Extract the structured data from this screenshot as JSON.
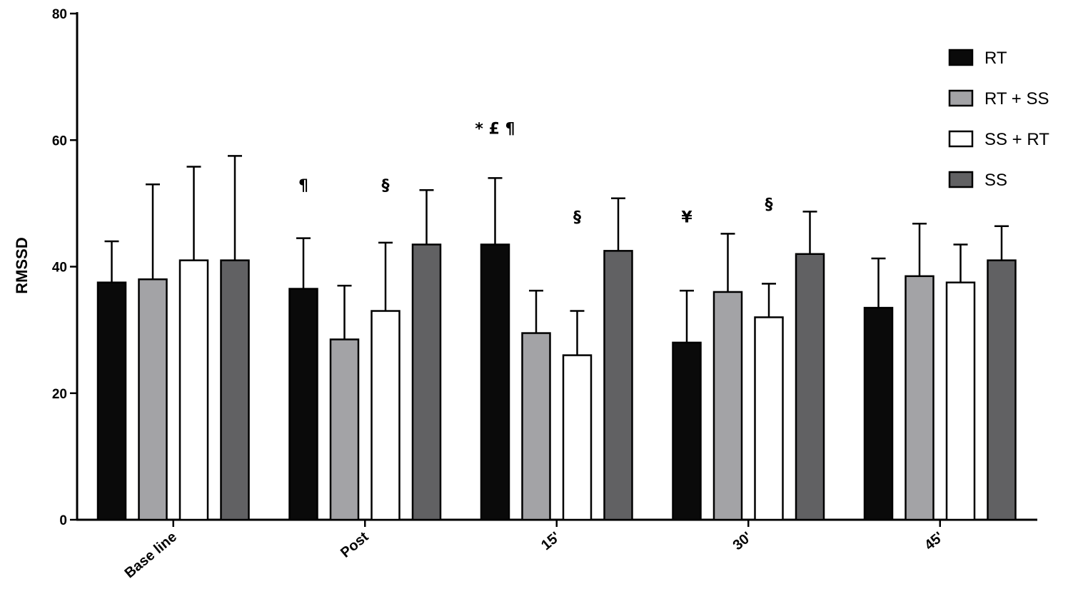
{
  "chart_data": {
    "type": "bar",
    "title": "",
    "xlabel": "",
    "ylabel": "RMSSD",
    "ylim": [
      0,
      80
    ],
    "yticks": [
      0,
      20,
      40,
      60,
      80
    ],
    "grid": false,
    "legend_position": "top-right",
    "categories": [
      "Base line",
      "Post",
      "15'",
      "30'",
      "45'"
    ],
    "series": [
      {
        "name": "RT",
        "color": "#0a0a0a",
        "values": [
          37.5,
          36.5,
          43.5,
          28.0,
          33.5
        ],
        "errors": [
          6.5,
          8.0,
          10.5,
          8.2,
          7.8
        ]
      },
      {
        "name": "RT + SS",
        "color": "#a3a3a6",
        "values": [
          38.0,
          28.5,
          29.5,
          36.0,
          38.5
        ],
        "errors": [
          15.0,
          8.5,
          6.7,
          9.2,
          8.3
        ]
      },
      {
        "name": "SS + RT",
        "color": "#ffffff",
        "values": [
          41.0,
          33.0,
          26.0,
          32.0,
          37.5
        ],
        "errors": [
          14.8,
          10.8,
          7.0,
          5.3,
          6.0
        ]
      },
      {
        "name": "SS",
        "color": "#616163",
        "values": [
          41.0,
          43.5,
          42.5,
          42.0,
          41.0
        ],
        "errors": [
          16.5,
          8.6,
          8.3,
          6.7,
          5.4
        ]
      }
    ],
    "annotations": [
      {
        "text": "¶",
        "category": 1,
        "series": 0,
        "y": 52
      },
      {
        "text": "§",
        "category": 1,
        "series": 2,
        "y": 52
      },
      {
        "text": "* £ ¶",
        "category": 2,
        "series": 0,
        "y": 61
      },
      {
        "text": "§",
        "category": 2,
        "series": 2,
        "y": 47
      },
      {
        "text": "¥",
        "category": 3,
        "series": 0,
        "y": 47
      },
      {
        "text": "§",
        "category": 3,
        "series": 2,
        "y": 49
      }
    ]
  }
}
